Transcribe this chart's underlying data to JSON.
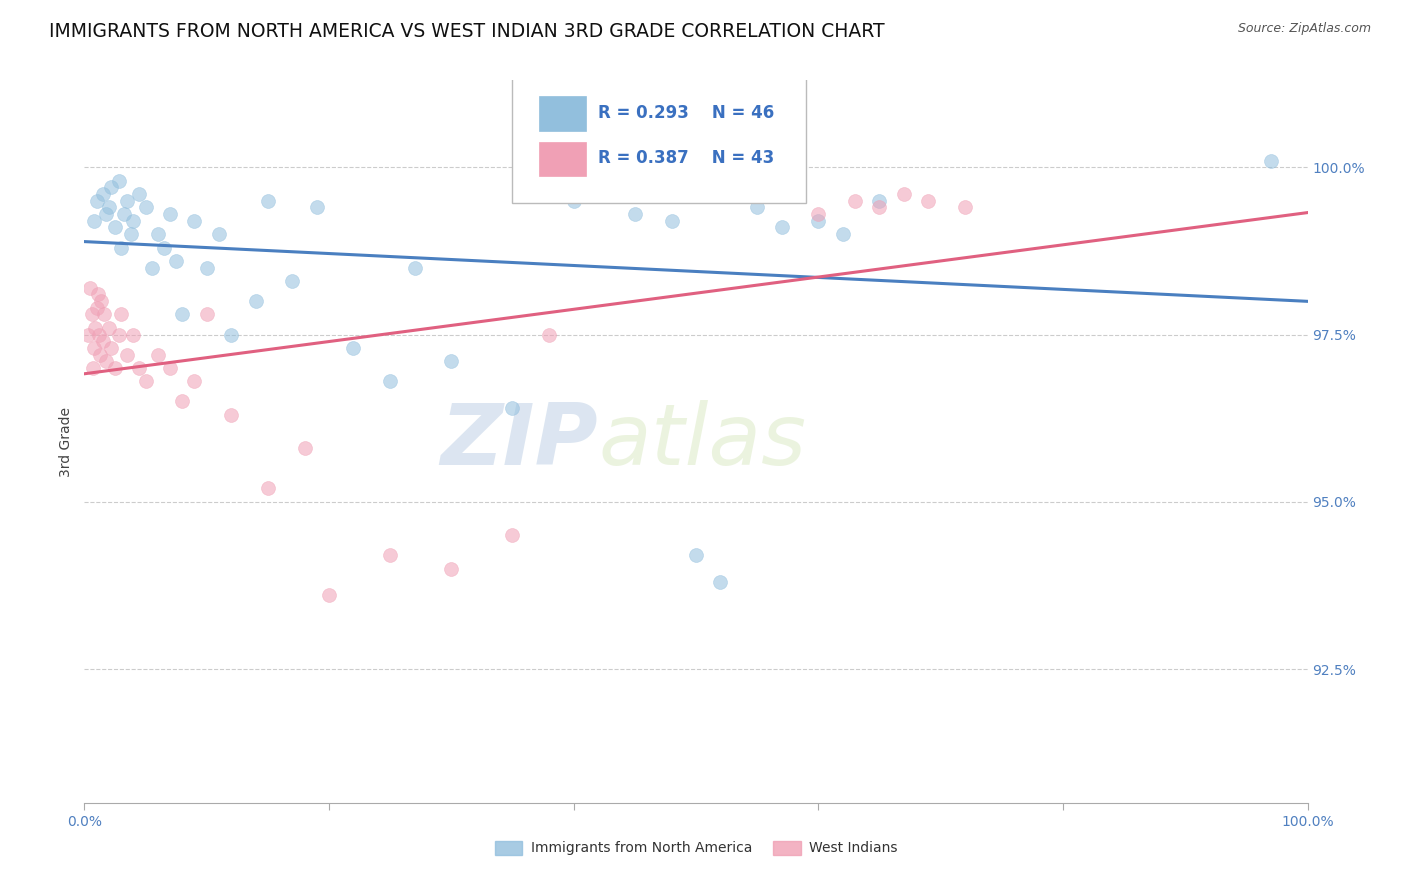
{
  "title": "IMMIGRANTS FROM NORTH AMERICA VS WEST INDIAN 3RD GRADE CORRELATION CHART",
  "source_text": "Source: ZipAtlas.com",
  "ylabel": "3rd Grade",
  "watermark_zip": "ZIP",
  "watermark_atlas": "atlas",
  "xlim": [
    0.0,
    100.0
  ],
  "ylim": [
    90.5,
    101.3
  ],
  "yticks": [
    92.5,
    95.0,
    97.5,
    100.0
  ],
  "ytick_labels": [
    "92.5%",
    "95.0%",
    "97.5%",
    "100.0%"
  ],
  "legend_blue_label": "Immigrants from North America",
  "legend_pink_label": "West Indians",
  "R_blue": 0.293,
  "N_blue": 46,
  "R_pink": 0.387,
  "N_pink": 43,
  "blue_color": "#92bfdd",
  "pink_color": "#f0a0b5",
  "blue_line_color": "#4a7fc0",
  "pink_line_color": "#e06080",
  "blue_scatter_x": [
    0.8,
    1.0,
    1.5,
    1.8,
    2.0,
    2.2,
    2.5,
    2.8,
    3.0,
    3.2,
    3.5,
    3.8,
    4.0,
    4.5,
    5.0,
    5.5,
    6.0,
    6.5,
    7.0,
    7.5,
    8.0,
    9.0,
    10.0,
    11.0,
    12.0,
    14.0,
    15.0,
    17.0,
    19.0,
    22.0,
    25.0,
    27.0,
    30.0,
    35.0,
    40.0,
    45.0,
    48.0,
    50.0,
    52.0,
    55.0,
    57.0,
    58.0,
    60.0,
    62.0,
    65.0,
    97.0
  ],
  "blue_scatter_y": [
    99.2,
    99.5,
    99.6,
    99.3,
    99.4,
    99.7,
    99.1,
    99.8,
    98.8,
    99.3,
    99.5,
    99.0,
    99.2,
    99.6,
    99.4,
    98.5,
    99.0,
    98.8,
    99.3,
    98.6,
    97.8,
    99.2,
    98.5,
    99.0,
    97.5,
    98.0,
    99.5,
    98.3,
    99.4,
    97.3,
    96.8,
    98.5,
    97.1,
    96.4,
    99.5,
    99.3,
    99.2,
    94.2,
    93.8,
    99.4,
    99.1,
    99.6,
    99.2,
    99.0,
    99.5,
    100.1
  ],
  "pink_scatter_x": [
    0.3,
    0.5,
    0.6,
    0.7,
    0.8,
    0.9,
    1.0,
    1.1,
    1.2,
    1.3,
    1.4,
    1.5,
    1.6,
    1.8,
    2.0,
    2.2,
    2.5,
    2.8,
    3.0,
    3.5,
    4.0,
    4.5,
    5.0,
    6.0,
    7.0,
    8.0,
    9.0,
    10.0,
    12.0,
    15.0,
    18.0,
    20.0,
    25.0,
    30.0,
    35.0,
    38.0,
    55.0,
    60.0,
    63.0,
    65.0,
    67.0,
    69.0,
    72.0
  ],
  "pink_scatter_y": [
    97.5,
    98.2,
    97.8,
    97.0,
    97.3,
    97.6,
    97.9,
    98.1,
    97.5,
    97.2,
    98.0,
    97.4,
    97.8,
    97.1,
    97.6,
    97.3,
    97.0,
    97.5,
    97.8,
    97.2,
    97.5,
    97.0,
    96.8,
    97.2,
    97.0,
    96.5,
    96.8,
    97.8,
    96.3,
    95.2,
    95.8,
    93.6,
    94.2,
    94.0,
    94.5,
    97.5,
    99.6,
    99.3,
    99.5,
    99.4,
    99.6,
    99.5,
    99.4
  ],
  "background_color": "#ffffff",
  "grid_color": "#cccccc",
  "title_fontsize": 13.5,
  "axis_label_fontsize": 10,
  "tick_fontsize": 10,
  "legend_fontsize": 12,
  "scatter_size": 100,
  "scatter_alpha": 0.55
}
